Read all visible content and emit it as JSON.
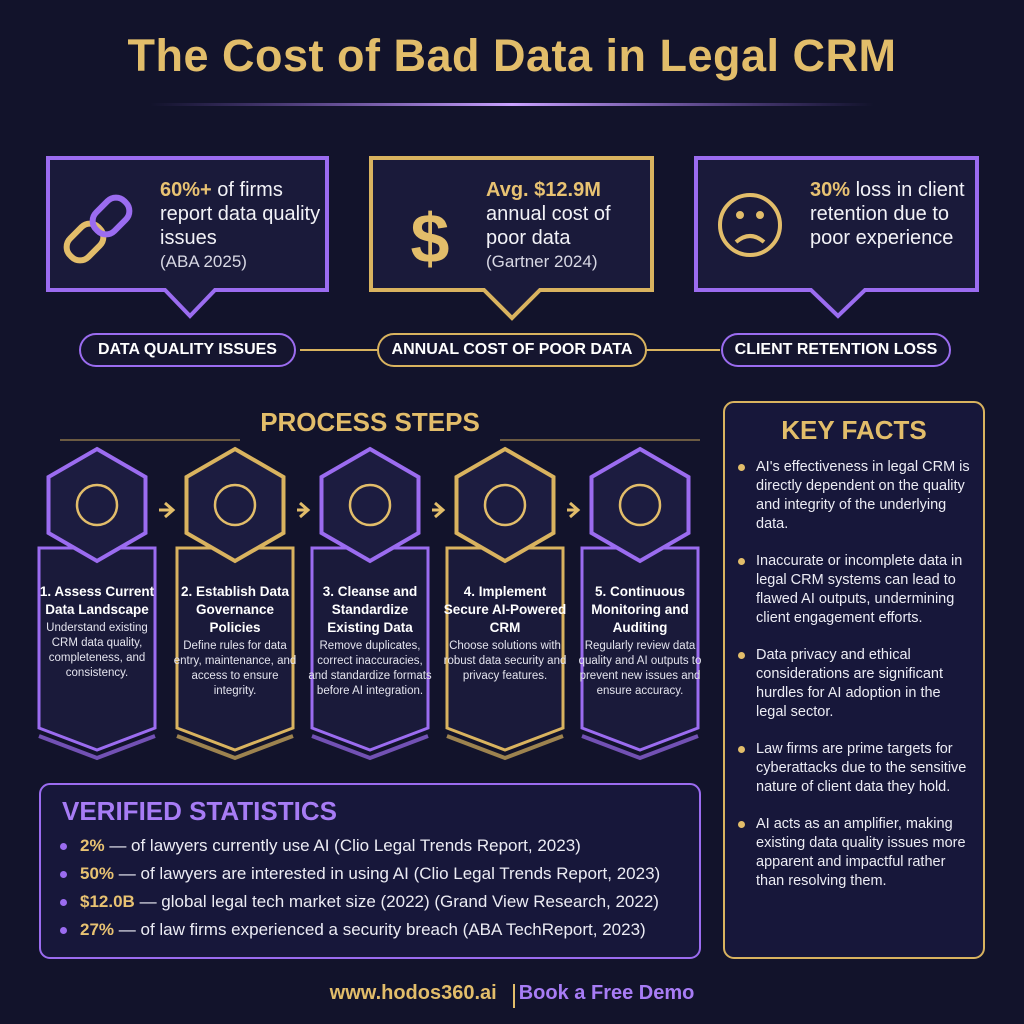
{
  "header": {
    "title": "The Cost of Bad Data in Legal CRM"
  },
  "cards": [
    {
      "highlight": "60%+",
      "text": "of firms report data quality issues",
      "source": "(ABA 2025)",
      "label": "DATA QUALITY ISSUES"
    },
    {
      "highlight": "Avg. $12.9M",
      "text": "annual cost of poor data",
      "source": "(Gartner 2024)",
      "label": "ANNUAL COST OF POOR DATA"
    },
    {
      "highlight": "30%",
      "text": "loss in client retention due to poor experience",
      "label": "CLIENT RETENTION LOSS"
    }
  ],
  "process": {
    "title": "PROCESS STEPS",
    "steps": [
      {
        "title": "1. Assess Current Data Landscape",
        "description": "Understand existing CRM data quality, completeness, and consistency."
      },
      {
        "title": "2. Establish Data Governance Policies",
        "description": "Define rules for data entry, maintenance, and access to ensure integrity."
      },
      {
        "title": "3. Cleanse and Standardize Existing Data",
        "description": "Remove duplicates, correct inaccuracies, and standardize formats before AI integration."
      },
      {
        "title": "4. Implement Secure AI-Powered CRM",
        "description": "Choose solutions with robust data security and privacy features."
      },
      {
        "title": "5. Continuous Monitoring and Auditing",
        "description": "Regularly review data quality and AI outputs to prevent new issues and ensure accuracy."
      }
    ]
  },
  "key_facts": {
    "title": "KEY FACTS",
    "items": [
      "AI's effectiveness in legal CRM is directly dependent on the quality and integrity of the underlying data.",
      "Inaccurate or incomplete data in legal CRM systems can lead to flawed AI outputs, undermining client engagement efforts.",
      "Data privacy and ethical considerations are significant hurdles for AI adoption in the legal sector.",
      "Law firms are prime targets for cyberattacks due to the sensitive nature of client data they hold.",
      "AI acts as an amplifier, making existing data quality issues more apparent and impactful rather than resolving them."
    ]
  },
  "statistics": {
    "title": "VERIFIED STATISTICS",
    "items": [
      {
        "figure": "2%",
        "text": "— of lawyers currently use AI (Clio Legal Trends Report, 2023)"
      },
      {
        "figure": "50%",
        "text": "— of lawyers are interested in using AI (Clio Legal Trends Report, 2023)"
      },
      {
        "figure": "$12.0B",
        "text": "— global legal tech market size (2022) (Grand View Research, 2022)"
      },
      {
        "figure": "27%",
        "text": "— of law firms experienced a security breach (ABA TechReport, 2023)"
      }
    ]
  },
  "footer": {
    "website": "www.hodos360.ai",
    "cta": "Book a Free Demo"
  }
}
